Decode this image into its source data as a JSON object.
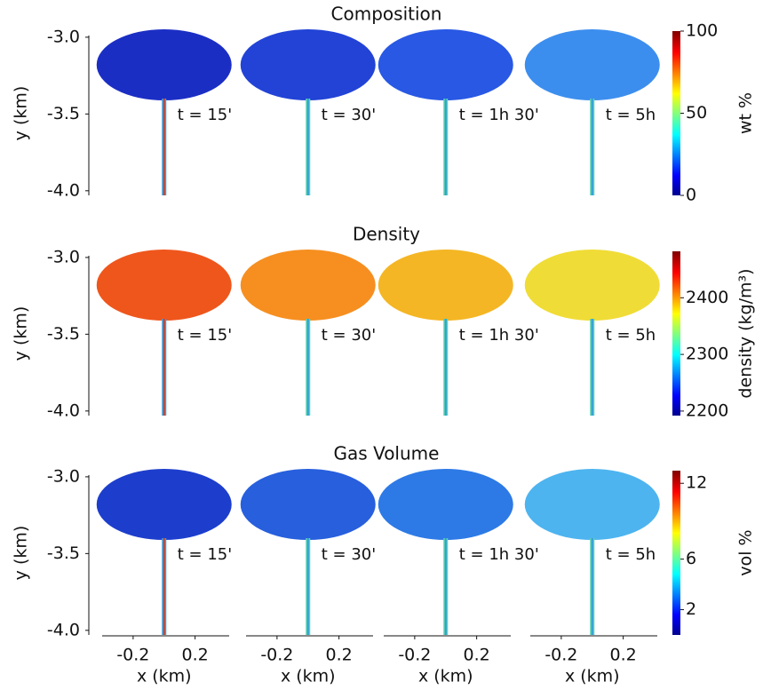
{
  "figure": {
    "y_axis": {
      "label": "y (km)",
      "lim": [
        -4.03,
        -2.96
      ],
      "ticks": [
        {
          "value": -3,
          "label": "-3.0"
        },
        -3.5,
        {
          "value": -4,
          "label": "-4.0"
        }
      ]
    },
    "x_axis": {
      "label": "x (km)",
      "lim": [
        -0.4,
        0.42
      ],
      "ticks": [
        -0.2,
        0.2
      ]
    },
    "times": [
      "t = 15'",
      "t = 30'",
      "t = 1h 30'",
      "t = 5h"
    ],
    "panels": [
      {
        "title": "Composition",
        "colorbar": {
          "label": "wt %",
          "lim": [
            0,
            100
          ],
          "ticks": [
            0,
            50,
            100
          ]
        }
      },
      {
        "title": "Density",
        "colorbar": {
          "label": "density (kg/m³)",
          "lim": [
            2192,
            2482
          ],
          "ticks": [
            2200,
            2300,
            2400
          ]
        }
      },
      {
        "title": "Gas Volume",
        "colorbar": {
          "label": "vol %",
          "lim": [
            0,
            13
          ],
          "ticks": [
            2,
            6,
            12
          ]
        }
      }
    ]
  }
}
